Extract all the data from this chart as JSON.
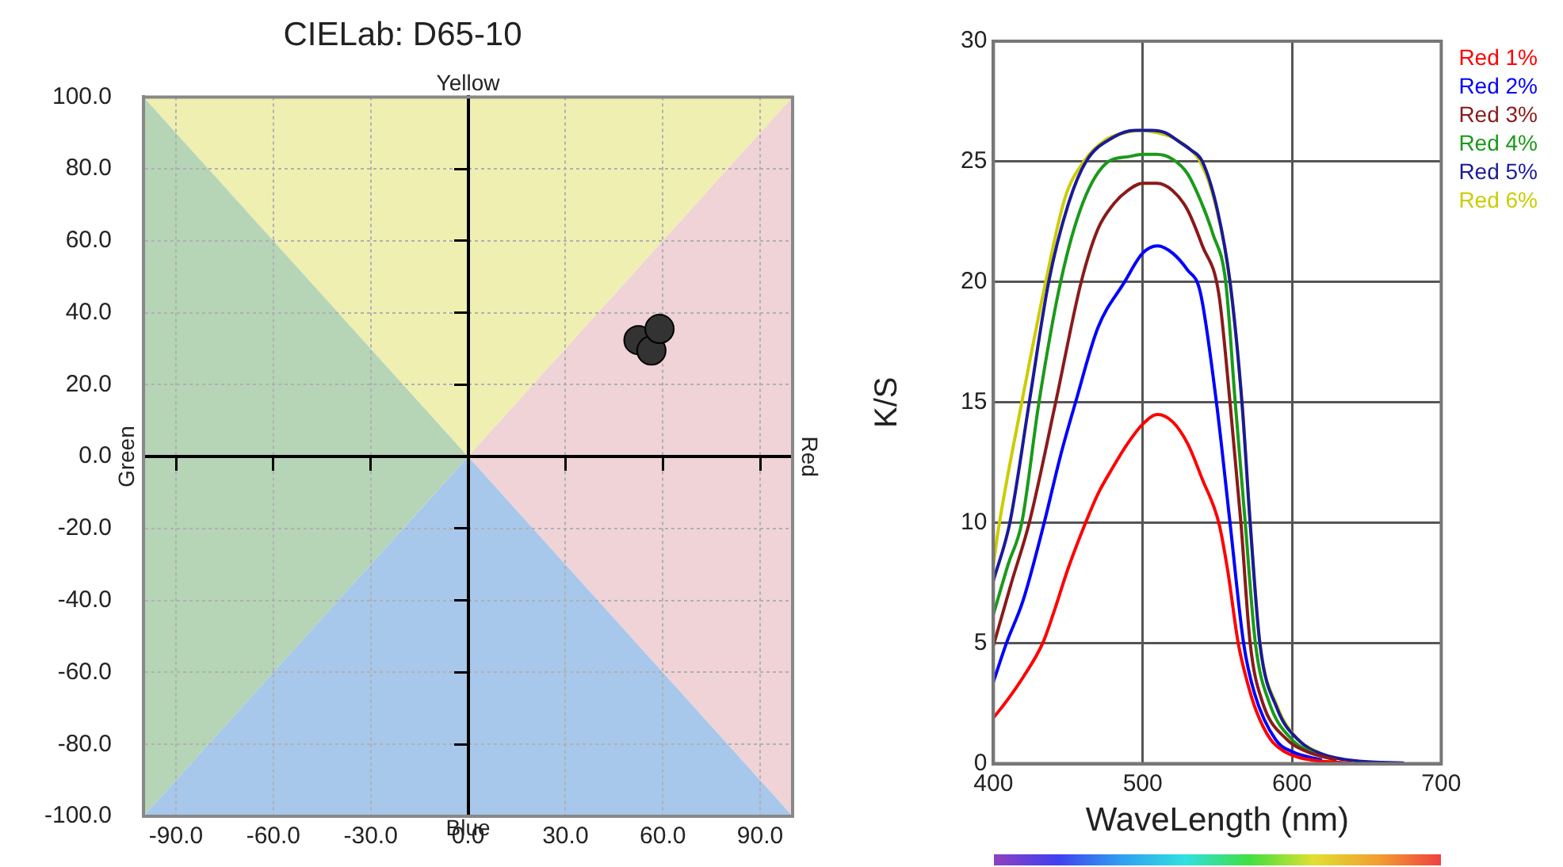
{
  "chart_data": [
    {
      "type": "scatter",
      "title": "CIELab: D65-10",
      "series": [
        {
          "color": "#333333",
          "x": [
            52.5,
            56.5,
            59
          ],
          "values": [
            32.4,
            29.5,
            35.5
          ]
        }
      ],
      "xlim": [
        -100,
        100
      ],
      "ylim": [
        -100,
        100
      ],
      "xticks": [
        {
          "value": -90,
          "label": "-90.0"
        },
        {
          "value": -60,
          "label": "-60.0"
        },
        {
          "value": -30,
          "label": "-30.0"
        },
        {
          "value": 0,
          "label": "0.0"
        },
        {
          "value": 30,
          "label": "30.0"
        },
        {
          "value": 60,
          "label": "60.0"
        },
        {
          "value": 90,
          "label": "90.0"
        }
      ],
      "yticks": [
        {
          "value": -100,
          "label": "-100.0"
        },
        {
          "value": -80,
          "label": "-80.0"
        },
        {
          "value": -60,
          "label": "-60.0"
        },
        {
          "value": -40,
          "label": "-40.0"
        },
        {
          "value": -20,
          "label": "-20.0"
        },
        {
          "value": 0,
          "label": "0.0"
        },
        {
          "value": 20,
          "label": "20.0"
        },
        {
          "value": 40,
          "label": "40.0"
        },
        {
          "value": 60,
          "label": "60.0"
        },
        {
          "value": 80,
          "label": "80.0"
        },
        {
          "value": 100,
          "label": "100.0"
        }
      ],
      "grid": true,
      "marker": "circle",
      "annotations": [
        "Yellow",
        "Blue",
        "Red",
        "Green"
      ]
    },
    {
      "type": "line",
      "xlabel": "WaveLength (nm)",
      "ylabel": "K/S",
      "series": [
        {
          "name": "Red 1%",
          "color": "#ff0000",
          "x": [
            400,
            410,
            420,
            433,
            440,
            450,
            461.7,
            470,
            480,
            490,
            500,
            510,
            520,
            530,
            540,
            551,
            557,
            564,
            570,
            576,
            585.7,
            595,
            605,
            620,
            640
          ],
          "values": [
            1.9,
            2.7,
            3.6,
            5,
            6.2,
            8.1,
            10,
            11.2,
            12.3,
            13.3,
            14.1,
            14.5,
            14.2,
            13.3,
            11.8,
            10,
            8,
            5,
            3.4,
            2.2,
            1,
            0.5,
            0.25,
            0.1,
            0.03
          ]
        },
        {
          "name": "Red 2%",
          "color": "#0000ff",
          "x": [
            400,
            408.7,
            420,
            434,
            445,
            455,
            470,
            487.8,
            500,
            510,
            520,
            530,
            538.5,
            549.4,
            558.5,
            567.6,
            575,
            589,
            600,
            620
          ],
          "values": [
            3.4,
            5,
            6.8,
            10,
            12.8,
            15,
            18.1,
            20,
            21.2,
            21.5,
            21.2,
            20.5,
            19.6,
            15,
            10,
            5,
            2.9,
            1,
            0.5,
            0.15
          ]
        },
        {
          "name": "Red 3%",
          "color": "#8b1a1a",
          "x": [
            400,
            412,
            424,
            441.7,
            458.8,
            470,
            480,
            490,
            500,
            509.5,
            520,
            530,
            540,
            551,
            558.5,
            565.8,
            572,
            580,
            596.6,
            610,
            630
          ],
          "values": [
            4.9,
            7.5,
            10,
            15,
            20,
            22.2,
            23.2,
            23.8,
            24.1,
            24.1,
            23.8,
            23,
            21.5,
            19.5,
            15,
            10,
            5,
            2.6,
            1,
            0.5,
            0.15
          ]
        },
        {
          "name": "Red 4%",
          "color": "#1a9a1a",
          "x": [
            400,
            410,
            419,
            430.5,
            445,
            460,
            477,
            490,
            500,
            509.5,
            520,
            530,
            540,
            547,
            555.6,
            562,
            568.7,
            575.5,
            585,
            600,
            615
          ],
          "values": [
            6.2,
            8.3,
            10,
            15,
            20,
            23.3,
            25,
            25.2,
            25.3,
            25.3,
            25.1,
            24.5,
            23.2,
            22,
            20,
            15,
            10,
            5,
            2.5,
            1,
            0.4
          ]
        },
        {
          "name": "Red 5%",
          "color": "#1a1a9a",
          "x": [
            400,
            411,
            424,
            437,
            450,
            462,
            480,
            495,
            505.9,
            515,
            525,
            532,
            540,
            550,
            558.5,
            566.5,
            572,
            578.5,
            590,
            604,
            620,
            645,
            675
          ],
          "values": [
            7.6,
            10,
            15,
            20,
            23.2,
            25,
            26,
            26.3,
            26.3,
            26.2,
            25.8,
            25.5,
            25,
            23,
            20,
            15,
            10,
            5,
            2.3,
            1,
            0.4,
            0.1,
            0.03
          ]
        },
        {
          "name": "Red 6%",
          "color": "#cccc00",
          "x": [
            400,
            404,
            419,
            435,
            448,
            460.5,
            475,
            488,
            498.7,
            510,
            520,
            530,
            538.5,
            548,
            558.5,
            566.5,
            572,
            578.5,
            590,
            604,
            620
          ],
          "values": [
            8.3,
            10,
            15,
            20,
            23.5,
            25,
            25.9,
            26.2,
            26.3,
            26.2,
            26,
            25.6,
            25,
            23.4,
            20,
            15,
            10,
            5,
            2.4,
            1,
            0.4
          ]
        }
      ],
      "xlim": [
        400,
        700
      ],
      "ylim": [
        0,
        30
      ],
      "xticks": [
        400,
        500,
        600,
        700
      ],
      "yticks": [
        0,
        5,
        10,
        15,
        20,
        25,
        30
      ],
      "grid": true,
      "legend": "top right",
      "marker": "none",
      "line_style": "solid"
    }
  ]
}
